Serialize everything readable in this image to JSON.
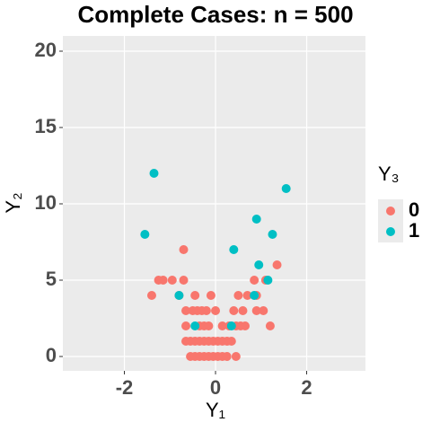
{
  "chart_data": {
    "type": "scatter",
    "title": "Complete Cases: n = 500",
    "x_label": "Y₁",
    "y_label": "Y₂",
    "legend_title": "Y₃",
    "xlim": [
      -3.35,
      3.29
    ],
    "ylim": [
      -0.94,
      21.0
    ],
    "xticks": [
      -2,
      0,
      2
    ],
    "yticks": [
      0,
      5,
      10,
      15,
      20
    ],
    "grid": true,
    "legend_position": "right",
    "series": [
      {
        "name": "0",
        "color": "#F8766D",
        "x": [
          -0.7,
          1.35,
          -1.25,
          -1.15,
          -0.95,
          -0.7,
          0.85,
          1.1,
          -1.4,
          -0.8,
          -0.45,
          -0.1,
          0.5,
          0.7,
          0.9,
          -0.65,
          -0.5,
          -0.4,
          -0.3,
          -0.2,
          0,
          0.4,
          0.6,
          0.9,
          1.05,
          -0.65,
          -0.35,
          -0.25,
          -0.15,
          0.15,
          0.3,
          0.45,
          0.55,
          0.65,
          1.2,
          -0.65,
          -0.55,
          -0.45,
          -0.35,
          -0.25,
          -0.15,
          -0.05,
          0.05,
          0.15,
          0.25,
          0.35,
          -0.55,
          -0.45,
          -0.35,
          -0.25,
          -0.15,
          -0.05,
          0.05,
          0.15,
          0.25,
          0.45
        ],
        "values": [
          7,
          6,
          5,
          5,
          5,
          5,
          5,
          5,
          4,
          4,
          4,
          4,
          4,
          4,
          4,
          3,
          3,
          3,
          3,
          3,
          3,
          3,
          3,
          3,
          3,
          2,
          2,
          2,
          2,
          2,
          2,
          2,
          2,
          2,
          2,
          1,
          1,
          1,
          1,
          1,
          1,
          1,
          1,
          1,
          1,
          1,
          0,
          0,
          0,
          0,
          0,
          0,
          0,
          0,
          0,
          0
        ]
      },
      {
        "name": "1",
        "color": "#00BFC4",
        "x": [
          -1.35,
          -1.55,
          1.55,
          0.9,
          1.25,
          0.4,
          0.95,
          1.15,
          0.85,
          -0.8,
          -0.45,
          0.35
        ],
        "values": [
          12,
          8,
          11,
          9,
          8,
          7,
          6,
          5,
          4,
          4,
          2,
          2
        ]
      }
    ]
  }
}
